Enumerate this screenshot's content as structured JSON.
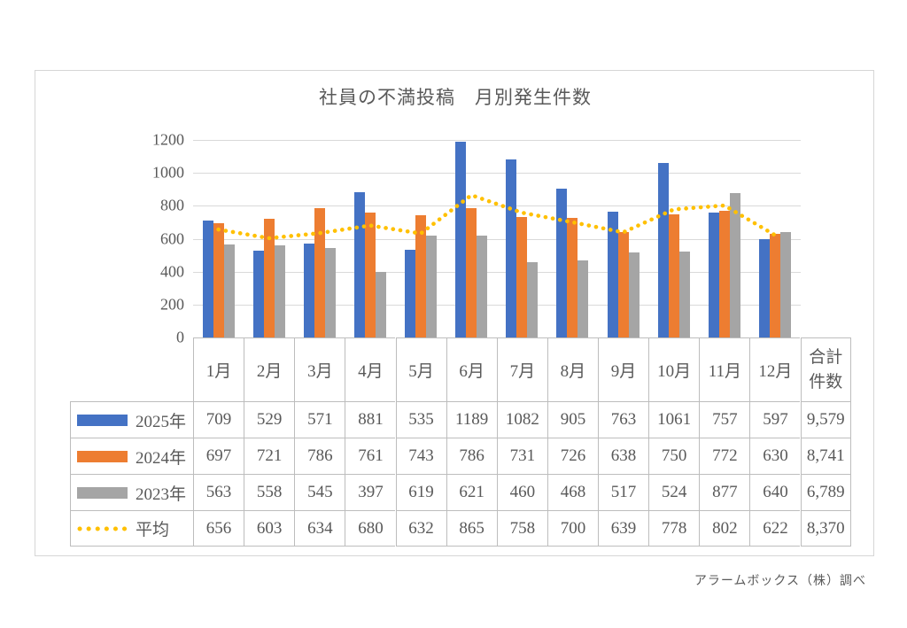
{
  "chart_data": {
    "type": "bar",
    "title": "社員の不満投稿　月別発生件数",
    "categories": [
      "1月",
      "2月",
      "3月",
      "4月",
      "5月",
      "6月",
      "7月",
      "8月",
      "9月",
      "10月",
      "11月",
      "12月"
    ],
    "series": [
      {
        "name": "2025年",
        "render": "bar",
        "color": "#4472C4",
        "values": [
          709,
          529,
          571,
          881,
          535,
          1189,
          1082,
          905,
          763,
          1061,
          757,
          597
        ],
        "total": "9,579"
      },
      {
        "name": "2024年",
        "render": "bar",
        "color": "#ED7D31",
        "values": [
          697,
          721,
          786,
          761,
          743,
          786,
          731,
          726,
          638,
          750,
          772,
          630
        ],
        "total": "8,741"
      },
      {
        "name": "2023年",
        "render": "bar",
        "color": "#A5A5A5",
        "values": [
          563,
          558,
          545,
          397,
          619,
          621,
          460,
          468,
          517,
          524,
          877,
          640
        ],
        "total": "6,789"
      },
      {
        "name": "平均",
        "render": "dotted-line",
        "color": "#FFC000",
        "values": [
          656,
          603,
          634,
          680,
          632,
          865,
          758,
          700,
          639,
          778,
          802,
          622
        ],
        "total": "8,370"
      }
    ],
    "ylim": [
      0,
      1200
    ],
    "yticks": [
      0,
      200,
      400,
      600,
      800,
      1000,
      1200
    ],
    "grid": true,
    "legend_position": "table-left-column",
    "total_header": "合計件数"
  },
  "footer": {
    "source": "アラームボックス（株）調べ"
  },
  "colors": {
    "text": "#595959",
    "gridline": "#d9d9d9",
    "table_border": "#bdbdbd",
    "frame_border": "#d6d6d6"
  }
}
